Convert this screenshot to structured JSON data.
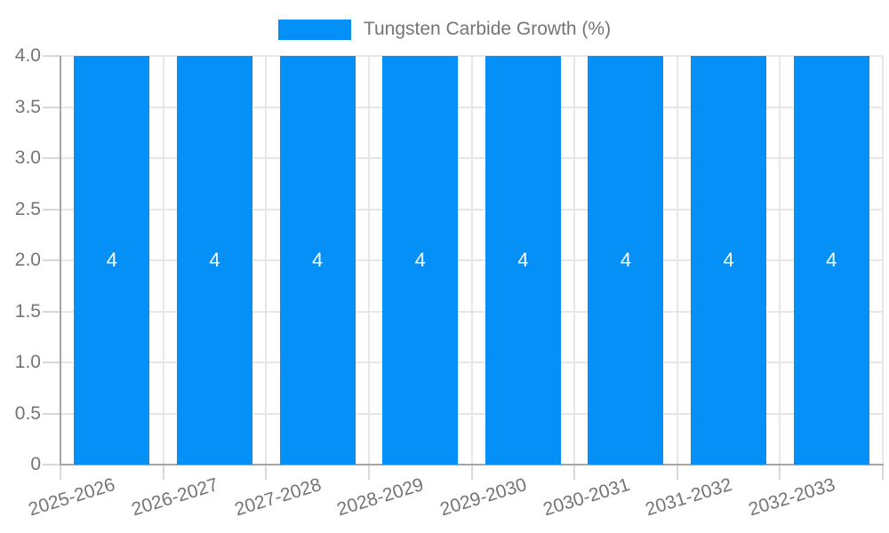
{
  "legend": {
    "label": "Tungsten Carbide Growth (%)"
  },
  "chart_data": {
    "type": "bar",
    "title": "Tungsten Carbide Growth (%)",
    "legend_position": "top-center",
    "grid": true,
    "categories": [
      "2025-2026",
      "2026-2027",
      "2027-2028",
      "2028-2029",
      "2029-2030",
      "2030-2031",
      "2031-2032",
      "2032-2033"
    ],
    "series": [
      {
        "name": "Tungsten Carbide Growth (%)",
        "values": [
          4,
          4,
          4,
          4,
          4,
          4,
          4,
          4
        ]
      }
    ],
    "bar_value_labels": [
      "4",
      "4",
      "4",
      "4",
      "4",
      "4",
      "4",
      "4"
    ],
    "xlabel": "",
    "ylabel": "",
    "ylim": [
      0,
      4
    ],
    "yticks": [
      {
        "value": 0,
        "label": "0"
      },
      {
        "value": 0.5,
        "label": "0.5"
      },
      {
        "value": 1,
        "label": "1.0"
      },
      {
        "value": 1.5,
        "label": "1.5"
      },
      {
        "value": 2,
        "label": "2.0"
      },
      {
        "value": 2.5,
        "label": "2.5"
      },
      {
        "value": 3,
        "label": "3.0"
      },
      {
        "value": 3.5,
        "label": "3.5"
      },
      {
        "value": 4,
        "label": "4.0"
      }
    ],
    "x_tick_label_rotation_deg": -17,
    "colors": {
      "bar": "#0590f8",
      "bar_label": "#ffffff",
      "axis_text": "#757575",
      "gridline": "#e7e7e7",
      "axis_line": "#a6a6a6",
      "tick": "#d8d8d8",
      "background": "#ffffff"
    }
  }
}
